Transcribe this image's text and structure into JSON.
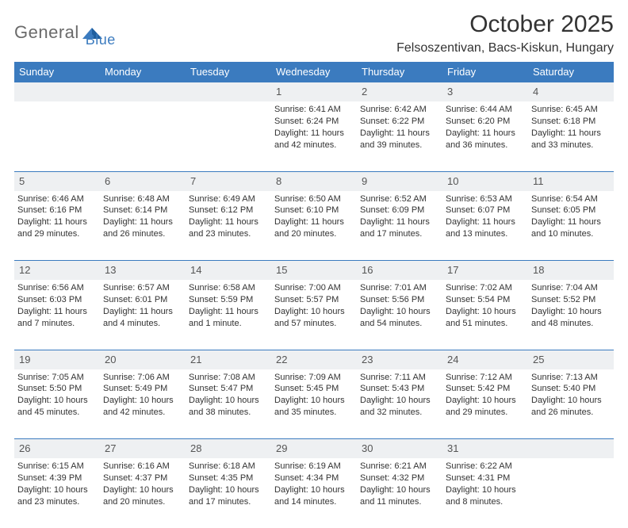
{
  "logo": {
    "text1": "General",
    "text2": "Blue"
  },
  "title": "October 2025",
  "location": "Felsoszentivan, Bacs-Kiskun, Hungary",
  "colors": {
    "header_bg": "#3b7bbf",
    "header_fg": "#ffffff",
    "daynum_bg": "#eef0f2",
    "rule": "#3b7bbf",
    "text": "#333333"
  },
  "weekdays": [
    "Sunday",
    "Monday",
    "Tuesday",
    "Wednesday",
    "Thursday",
    "Friday",
    "Saturday"
  ],
  "weeks": [
    [
      null,
      null,
      null,
      {
        "n": "1",
        "sr": "6:41 AM",
        "ss": "6:24 PM",
        "dl": "11 hours and 42 minutes."
      },
      {
        "n": "2",
        "sr": "6:42 AM",
        "ss": "6:22 PM",
        "dl": "11 hours and 39 minutes."
      },
      {
        "n": "3",
        "sr": "6:44 AM",
        "ss": "6:20 PM",
        "dl": "11 hours and 36 minutes."
      },
      {
        "n": "4",
        "sr": "6:45 AM",
        "ss": "6:18 PM",
        "dl": "11 hours and 33 minutes."
      }
    ],
    [
      {
        "n": "5",
        "sr": "6:46 AM",
        "ss": "6:16 PM",
        "dl": "11 hours and 29 minutes."
      },
      {
        "n": "6",
        "sr": "6:48 AM",
        "ss": "6:14 PM",
        "dl": "11 hours and 26 minutes."
      },
      {
        "n": "7",
        "sr": "6:49 AM",
        "ss": "6:12 PM",
        "dl": "11 hours and 23 minutes."
      },
      {
        "n": "8",
        "sr": "6:50 AM",
        "ss": "6:10 PM",
        "dl": "11 hours and 20 minutes."
      },
      {
        "n": "9",
        "sr": "6:52 AM",
        "ss": "6:09 PM",
        "dl": "11 hours and 17 minutes."
      },
      {
        "n": "10",
        "sr": "6:53 AM",
        "ss": "6:07 PM",
        "dl": "11 hours and 13 minutes."
      },
      {
        "n": "11",
        "sr": "6:54 AM",
        "ss": "6:05 PM",
        "dl": "11 hours and 10 minutes."
      }
    ],
    [
      {
        "n": "12",
        "sr": "6:56 AM",
        "ss": "6:03 PM",
        "dl": "11 hours and 7 minutes."
      },
      {
        "n": "13",
        "sr": "6:57 AM",
        "ss": "6:01 PM",
        "dl": "11 hours and 4 minutes."
      },
      {
        "n": "14",
        "sr": "6:58 AM",
        "ss": "5:59 PM",
        "dl": "11 hours and 1 minute."
      },
      {
        "n": "15",
        "sr": "7:00 AM",
        "ss": "5:57 PM",
        "dl": "10 hours and 57 minutes."
      },
      {
        "n": "16",
        "sr": "7:01 AM",
        "ss": "5:56 PM",
        "dl": "10 hours and 54 minutes."
      },
      {
        "n": "17",
        "sr": "7:02 AM",
        "ss": "5:54 PM",
        "dl": "10 hours and 51 minutes."
      },
      {
        "n": "18",
        "sr": "7:04 AM",
        "ss": "5:52 PM",
        "dl": "10 hours and 48 minutes."
      }
    ],
    [
      {
        "n": "19",
        "sr": "7:05 AM",
        "ss": "5:50 PM",
        "dl": "10 hours and 45 minutes."
      },
      {
        "n": "20",
        "sr": "7:06 AM",
        "ss": "5:49 PM",
        "dl": "10 hours and 42 minutes."
      },
      {
        "n": "21",
        "sr": "7:08 AM",
        "ss": "5:47 PM",
        "dl": "10 hours and 38 minutes."
      },
      {
        "n": "22",
        "sr": "7:09 AM",
        "ss": "5:45 PM",
        "dl": "10 hours and 35 minutes."
      },
      {
        "n": "23",
        "sr": "7:11 AM",
        "ss": "5:43 PM",
        "dl": "10 hours and 32 minutes."
      },
      {
        "n": "24",
        "sr": "7:12 AM",
        "ss": "5:42 PM",
        "dl": "10 hours and 29 minutes."
      },
      {
        "n": "25",
        "sr": "7:13 AM",
        "ss": "5:40 PM",
        "dl": "10 hours and 26 minutes."
      }
    ],
    [
      {
        "n": "26",
        "sr": "6:15 AM",
        "ss": "4:39 PM",
        "dl": "10 hours and 23 minutes."
      },
      {
        "n": "27",
        "sr": "6:16 AM",
        "ss": "4:37 PM",
        "dl": "10 hours and 20 minutes."
      },
      {
        "n": "28",
        "sr": "6:18 AM",
        "ss": "4:35 PM",
        "dl": "10 hours and 17 minutes."
      },
      {
        "n": "29",
        "sr": "6:19 AM",
        "ss": "4:34 PM",
        "dl": "10 hours and 14 minutes."
      },
      {
        "n": "30",
        "sr": "6:21 AM",
        "ss": "4:32 PM",
        "dl": "10 hours and 11 minutes."
      },
      {
        "n": "31",
        "sr": "6:22 AM",
        "ss": "4:31 PM",
        "dl": "10 hours and 8 minutes."
      },
      null
    ]
  ],
  "labels": {
    "sunrise": "Sunrise:",
    "sunset": "Sunset:",
    "daylight": "Daylight:"
  }
}
